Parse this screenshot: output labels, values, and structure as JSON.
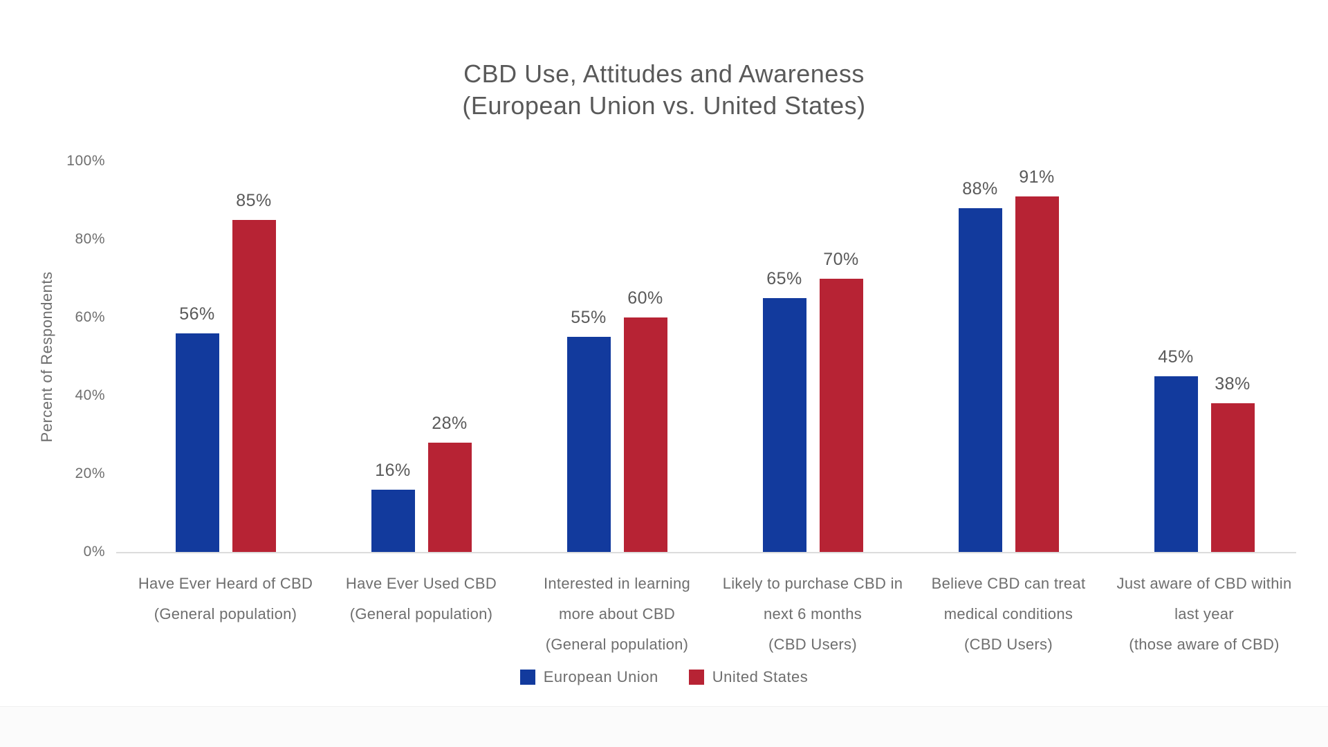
{
  "chart_data": {
    "type": "bar",
    "title": "CBD Use, Attitudes and Awareness",
    "subtitle": "(European Union vs. United States)",
    "ylabel": "Percent of Respondents",
    "ylim": [
      0,
      100
    ],
    "ytick_step": 20,
    "ytick_labels": [
      "0%",
      "20%",
      "40%",
      "60%",
      "80%",
      "100%"
    ],
    "grid": false,
    "data_labels": true,
    "legend_position": "bottom",
    "categories": [
      [
        "Have Ever Heard of CBD",
        "(General population)"
      ],
      [
        "Have Ever Used CBD",
        "(General population)"
      ],
      [
        "Interested in learning",
        "more about CBD",
        "(General population)"
      ],
      [
        "Likely to purchase CBD in",
        "next 6 months",
        "(CBD Users)"
      ],
      [
        "Believe CBD can treat",
        "medical conditions",
        "(CBD Users)"
      ],
      [
        "Just aware of CBD within",
        "last year",
        "(those aware of CBD)"
      ]
    ],
    "series": [
      {
        "name": "European Union",
        "color": "#123A9D",
        "values": [
          56,
          16,
          55,
          65,
          88,
          45
        ]
      },
      {
        "name": "United States",
        "color": "#B72334",
        "values": [
          85,
          28,
          60,
          70,
          91,
          38
        ]
      }
    ],
    "value_suffix": "%"
  },
  "colors": {
    "text": "#595959",
    "muted_text": "#6e6e6e",
    "axis_line": "#dcdcdc",
    "background": "#ffffff"
  }
}
